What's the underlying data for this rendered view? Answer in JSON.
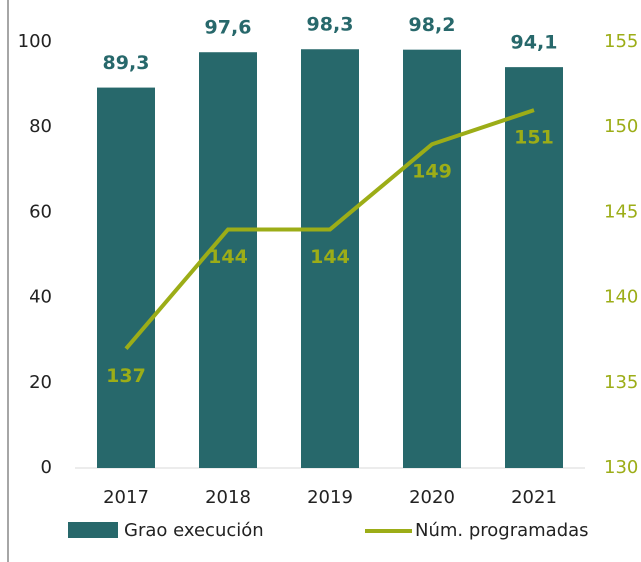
{
  "chart_data": {
    "type": "bar-line",
    "categories": [
      "2017",
      "2018",
      "2019",
      "2020",
      "2021"
    ],
    "series": [
      {
        "name": "Grao execución",
        "type": "bar",
        "color": "#27686b",
        "values": [
          89.3,
          97.6,
          98.3,
          98.2,
          94.1
        ],
        "value_labels": [
          "89,3",
          "97,6",
          "98,3",
          "98,2",
          "94,1"
        ]
      },
      {
        "name": "Núm. programadas",
        "type": "line",
        "axis": "y2",
        "color": "#9cad17",
        "values": [
          137,
          144,
          144,
          149,
          151
        ]
      }
    ],
    "ylim": [
      0,
      100
    ],
    "yticks": [
      0,
      20,
      40,
      60,
      80,
      100
    ],
    "y2lim": [
      130,
      155
    ],
    "y2ticks": [
      130,
      135,
      140,
      145,
      150,
      155
    ],
    "legend": "bottom"
  }
}
